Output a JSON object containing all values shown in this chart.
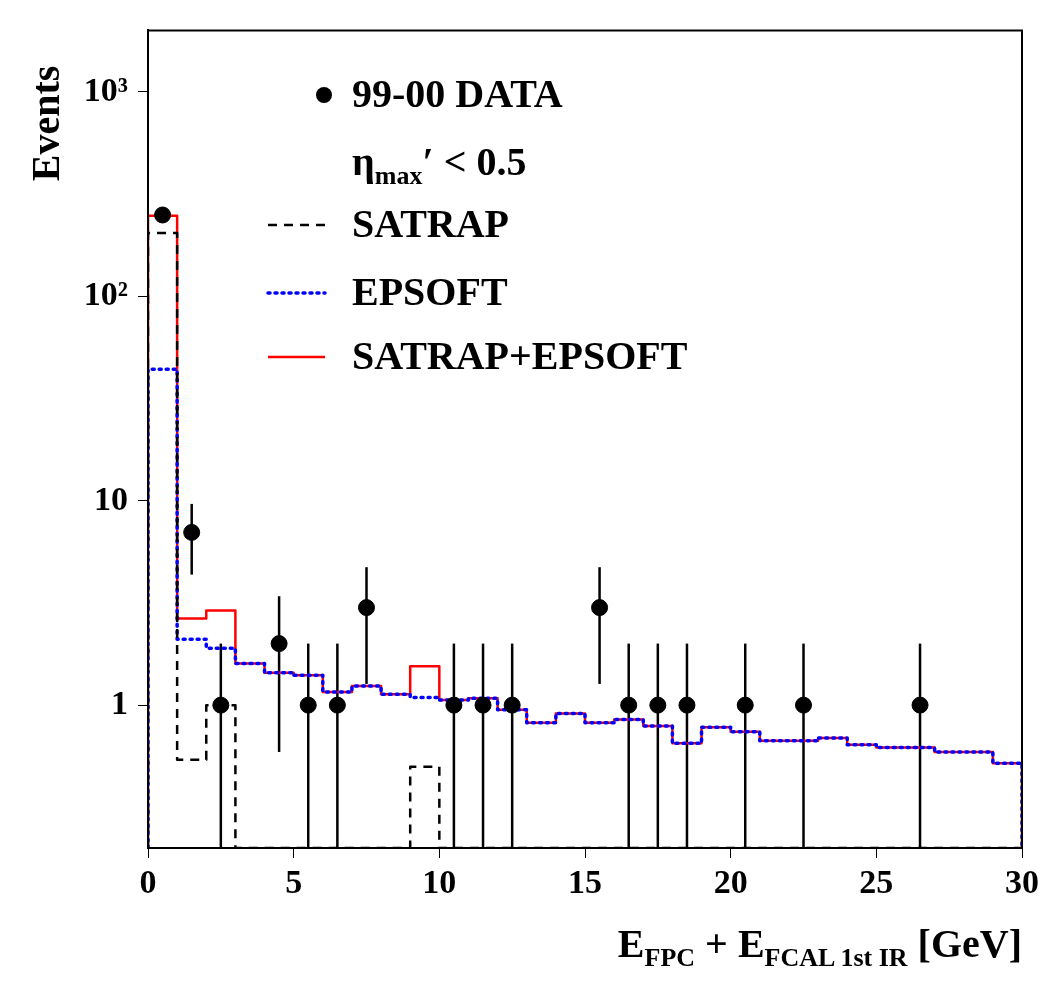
{
  "chart_data": {
    "type": "histogram",
    "xlabel": "E$_{FPC}$ + E$_{FCAL 1st IR}$ [GeV]",
    "ylabel": "Events",
    "log": "y",
    "legend": "top left",
    "grid": false,
    "bins": [
      0,
      1,
      2,
      3,
      4,
      5,
      6,
      7,
      8,
      9,
      10,
      11,
      12,
      13,
      14,
      15,
      16,
      17,
      18,
      19,
      20,
      21,
      22,
      23,
      24,
      25,
      26,
      27,
      28,
      29,
      30
    ],
    "xlim": [
      0,
      30
    ],
    "xticks": [
      0,
      5,
      10,
      15,
      20,
      25,
      30
    ],
    "ylim": [
      0.2,
      2000
    ],
    "yticks": [
      1,
      10,
      {
        "value": 100,
        "label": "10²"
      },
      {
        "value": 1000,
        "label": "10³"
      }
    ],
    "annotations": [
      "η$_{max}$′ < 0.5"
    ],
    "series": [
      {
        "name": "99-00 DATA",
        "type": "scatter",
        "marker": "circle",
        "color": "#000000",
        "x": [
          0.5,
          1.5,
          2.5,
          4.5,
          5.5,
          6.5,
          7.5,
          10.5,
          11.5,
          12.5,
          15.5,
          16.5,
          17.5,
          18.5,
          20.5,
          22.5,
          26.5
        ],
        "values": [
          250,
          7,
          1,
          2,
          1,
          1,
          3,
          1,
          1,
          1,
          3,
          1,
          1,
          1,
          1,
          1,
          1
        ],
        "errors": [
          15.8,
          2.65,
          [
            0.2,
            2
          ],
          1.41,
          [
            0.2,
            2
          ],
          [
            0.2,
            2
          ],
          1.73,
          [
            0.2,
            2
          ],
          [
            0.2,
            2
          ],
          [
            0.2,
            2
          ],
          1.73,
          [
            0.2,
            2
          ],
          [
            0.2,
            2
          ],
          [
            0.2,
            2
          ],
          [
            0.2,
            2
          ],
          [
            0.2,
            2
          ],
          [
            0.2,
            2
          ]
        ]
      },
      {
        "name": "SATRAP",
        "line_style": "dashed",
        "color": "#000000",
        "values": [
          204,
          0.54,
          1,
          null,
          null,
          null,
          null,
          null,
          null,
          0.5,
          null,
          null,
          null,
          null,
          null,
          null,
          null,
          null,
          null,
          null,
          null,
          null,
          null,
          null,
          null,
          null,
          null,
          null,
          null,
          null
        ]
      },
      {
        "name": "EPSOFT",
        "line_style": "dotted",
        "color": "#0000ff",
        "values": [
          44,
          2.1,
          1.9,
          1.6,
          1.44,
          1.4,
          1.16,
          1.24,
          1.13,
          1.09,
          1.06,
          1.08,
          0.95,
          0.82,
          0.91,
          0.82,
          0.85,
          0.79,
          0.65,
          0.78,
          0.74,
          0.67,
          0.67,
          0.69,
          0.64,
          0.62,
          0.62,
          0.59,
          0.59,
          0.52
        ]
      },
      {
        "name": "SATRAP+EPSOFT",
        "line_style": "solid",
        "color": "#ff0000",
        "values": [
          248,
          2.65,
          2.9,
          1.6,
          1.44,
          1.4,
          1.16,
          1.24,
          1.13,
          1.55,
          1.06,
          1.08,
          0.95,
          0.82,
          0.91,
          0.82,
          0.85,
          0.79,
          0.65,
          0.78,
          0.74,
          0.67,
          0.67,
          0.69,
          0.64,
          0.62,
          0.62,
          0.59,
          0.59,
          0.52
        ]
      }
    ]
  }
}
